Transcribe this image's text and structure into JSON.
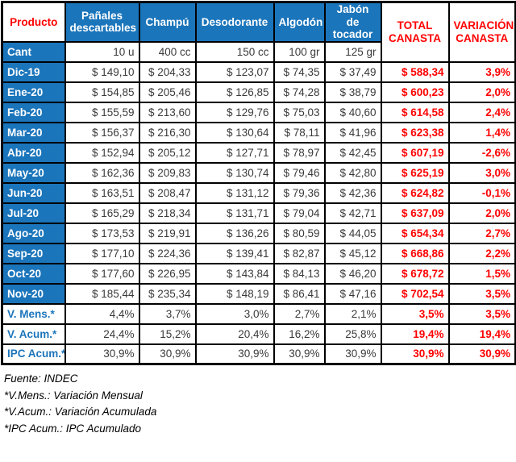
{
  "colors": {
    "blue": "#1b75bb",
    "red": "#ff0000",
    "data_text": "#3a3a3a"
  },
  "table": {
    "header": {
      "producto": "Producto",
      "products": [
        "Pañales descartables",
        "Champú",
        "Desodorante",
        "Algodón",
        "Jabón de tocador"
      ],
      "total": "TOTAL CANASTA",
      "variacion": "VARIACIÓN CANASTA"
    },
    "cant_row": {
      "label": "Cant",
      "values": [
        "10 u",
        "400 cc",
        "150 cc",
        "100 gr",
        "125 gr"
      ]
    },
    "month_rows": [
      {
        "label": "Dic-19",
        "values": [
          "$ 149,10",
          "$ 204,33",
          "$ 123,07",
          "$ 74,35",
          "$ 37,49"
        ],
        "total": "$ 588,34",
        "var": "3,9%"
      },
      {
        "label": "Ene-20",
        "values": [
          "$ 154,85",
          "$ 205,46",
          "$ 126,85",
          "$ 74,28",
          "$ 38,79"
        ],
        "total": "$ 600,23",
        "var": "2,0%"
      },
      {
        "label": "Feb-20",
        "values": [
          "$ 155,59",
          "$ 213,60",
          "$ 129,76",
          "$ 75,03",
          "$ 40,60"
        ],
        "total": "$ 614,58",
        "var": "2,4%"
      },
      {
        "label": "Mar-20",
        "values": [
          "$ 156,37",
          "$ 216,30",
          "$ 130,64",
          "$ 78,11",
          "$ 41,96"
        ],
        "total": "$ 623,38",
        "var": "1,4%"
      },
      {
        "label": "Abr-20",
        "values": [
          "$ 152,94",
          "$ 205,12",
          "$ 127,71",
          "$ 78,97",
          "$ 42,45"
        ],
        "total": "$ 607,19",
        "var": "-2,6%"
      },
      {
        "label": "May-20",
        "values": [
          "$ 162,36",
          "$ 209,83",
          "$ 130,74",
          "$ 79,46",
          "$ 42,80"
        ],
        "total": "$ 625,19",
        "var": "3,0%"
      },
      {
        "label": "Jun-20",
        "values": [
          "$ 163,51",
          "$ 208,47",
          "$ 131,12",
          "$ 79,36",
          "$ 42,36"
        ],
        "total": "$ 624,82",
        "var": "-0,1%"
      },
      {
        "label": "Jul-20",
        "values": [
          "$ 165,29",
          "$ 218,34",
          "$ 131,71",
          "$ 79,04",
          "$ 42,71"
        ],
        "total": "$ 637,09",
        "var": "2,0%"
      },
      {
        "label": "Ago-20",
        "values": [
          "$ 173,53",
          "$ 219,91",
          "$ 136,26",
          "$ 80,59",
          "$ 44,05"
        ],
        "total": "$ 654,34",
        "var": "2,7%"
      },
      {
        "label": "Sep-20",
        "values": [
          "$ 177,10",
          "$ 224,36",
          "$ 139,41",
          "$ 82,87",
          "$ 45,12"
        ],
        "total": "$ 668,86",
        "var": "2,2%"
      },
      {
        "label": "Oct-20",
        "values": [
          "$ 177,60",
          "$ 226,95",
          "$ 143,84",
          "$ 84,13",
          "$ 46,20"
        ],
        "total": "$ 678,72",
        "var": "1,5%"
      },
      {
        "label": "Nov-20",
        "values": [
          "$ 185,44",
          "$ 235,34",
          "$ 148,19",
          "$ 86,41",
          "$ 47,16"
        ],
        "total": "$ 702,54",
        "var": "3,5%"
      }
    ],
    "summary_rows": [
      {
        "label": "V. Mens.*",
        "values": [
          "4,4%",
          "3,7%",
          "3,0%",
          "2,7%",
          "2,1%"
        ],
        "total": "3,5%",
        "var": "3,5%"
      },
      {
        "label": "V. Acum.*",
        "values": [
          "24,4%",
          "15,2%",
          "20,4%",
          "16,2%",
          "25,8%"
        ],
        "total": "19,4%",
        "var": "19,4%"
      },
      {
        "label": "IPC Acum.*",
        "values": [
          "30,9%",
          "30,9%",
          "30,9%",
          "30,9%",
          "30,9%"
        ],
        "total": "30,9%",
        "var": "30,9%"
      }
    ]
  },
  "footer_lines": [
    "Fuente: INDEC",
    "*V.Mens.: Variación Mensual",
    "*V.Acum.: Variación Acumulada",
    "*IPC Acum.: IPC Acumulado"
  ]
}
